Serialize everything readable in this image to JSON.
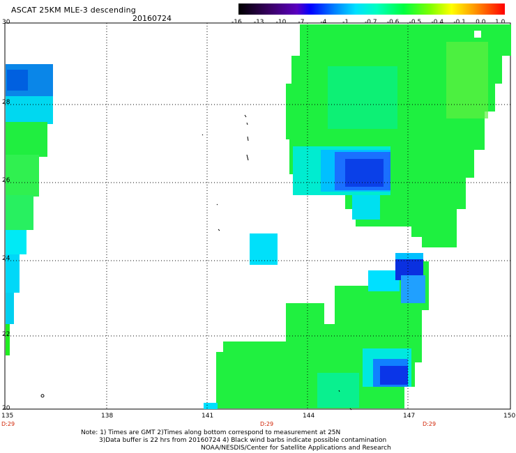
{
  "header": {
    "title": "ASCAT 25KM MLE-3 descending",
    "date": "20160724"
  },
  "colorbar": {
    "labels": [
      "-16",
      "-13",
      "-10",
      "-7",
      "-4",
      "-1",
      "-0.7",
      "-0.6",
      "-0.5",
      "-0.4",
      "-0.1",
      "0.0",
      "1.0"
    ],
    "colors": [
      "#000000",
      "#3a0066",
      "#5a00c0",
      "#0000ff",
      "#0080ff",
      "#00e0ff",
      "#00ffc0",
      "#00ff40",
      "#80ff00",
      "#ffff00",
      "#ffa000",
      "#ff5000",
      "#ff0000"
    ]
  },
  "axes": {
    "y_labels": [
      "30",
      "28",
      "26",
      "24",
      "22",
      "20"
    ],
    "x_labels": [
      "135",
      "138",
      "141",
      "144",
      "147",
      "150"
    ]
  },
  "time_labels": [
    "D:29",
    "D:29",
    "D:29"
  ],
  "notes": {
    "line1": "Note: 1) Times are GMT 2)Times along bottom correspond to measurement at 25N",
    "line2": "3)Data buffer is 22 hrs from 20160724 4) Black wind barbs indicate possible contamination",
    "line3": "NOAA/NESDIS/Center for Satellite Applications and Research"
  }
}
